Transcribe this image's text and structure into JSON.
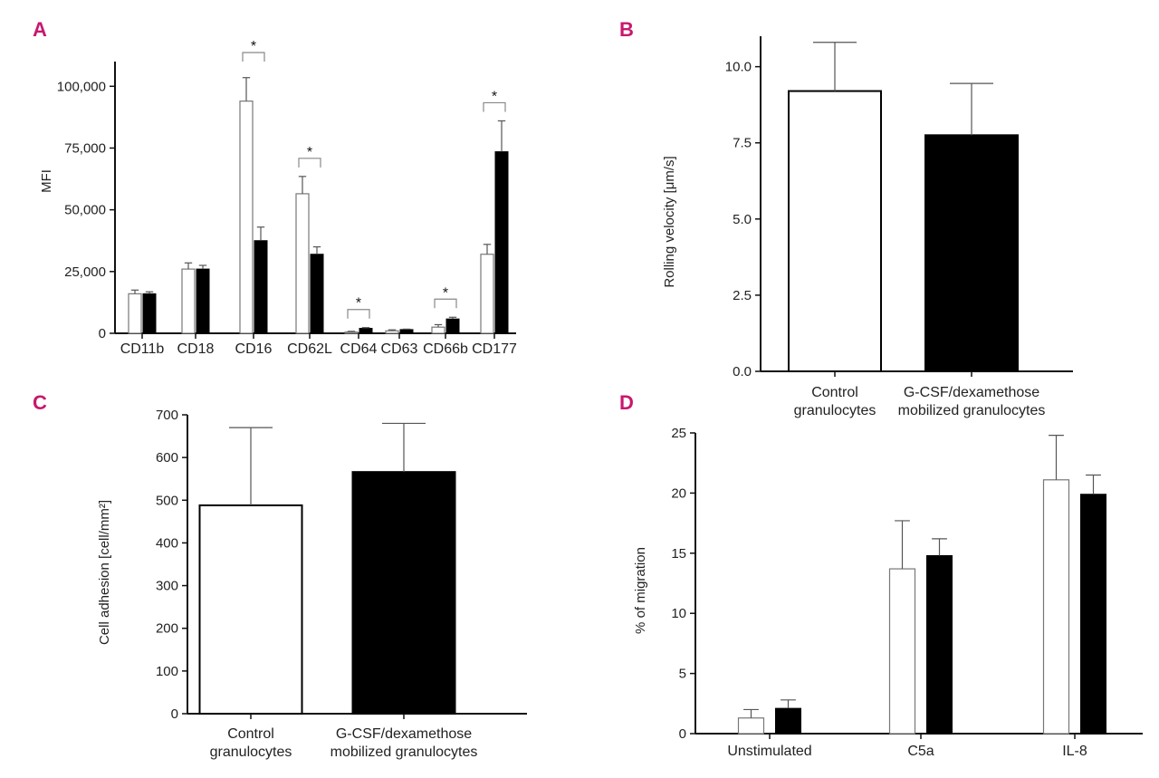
{
  "chart_data": [
    {
      "panel": "A",
      "type": "bar",
      "ylabel": "MFI",
      "ylim": [
        0,
        110000
      ],
      "yticks": [
        0,
        25000,
        50000,
        75000,
        100000
      ],
      "ytick_labels": [
        "0",
        "25,000",
        "50,000",
        "75,000",
        "100,000"
      ],
      "categories": [
        "CD11b",
        "CD18",
        "CD16",
        "CD62L",
        "CD64",
        "CD63",
        "CD66b",
        "CD177"
      ],
      "series": [
        {
          "name": "Control granulocytes",
          "color": "#ffffff",
          "values": [
            16000,
            26000,
            94000,
            56500,
            500,
            1000,
            2500,
            32000
          ],
          "errors": [
            1500,
            2500,
            9500,
            7000,
            300,
            400,
            1000,
            4000
          ]
        },
        {
          "name": "G-CSF/dexamethose mobilized granulocytes",
          "color": "#000000",
          "values": [
            16000,
            26000,
            37500,
            32000,
            2000,
            1500,
            5800,
            73500
          ],
          "errors": [
            800,
            1500,
            5500,
            3000,
            300,
            200,
            700,
            12500
          ]
        }
      ],
      "significance": [
        {
          "category": "CD16",
          "label": "*"
        },
        {
          "category": "CD62L",
          "label": "*"
        },
        {
          "category": "CD64",
          "label": "*"
        },
        {
          "category": "CD66b",
          "label": "*"
        },
        {
          "category": "CD177",
          "label": "*"
        }
      ]
    },
    {
      "panel": "B",
      "type": "bar",
      "ylabel": "Rolling velocity [μm/s]",
      "ylim": [
        0,
        11
      ],
      "yticks": [
        0,
        2.5,
        5,
        7.5,
        10
      ],
      "ytick_labels": [
        "0.0",
        "2.5",
        "5.0",
        "7.5",
        "10.0"
      ],
      "categories": [
        [
          "Control",
          "granulocytes"
        ],
        [
          "G-CSF/dexamethose",
          "mobilized granulocytes"
        ]
      ],
      "values": [
        9.2,
        7.75
      ],
      "errors": [
        1.6,
        1.7
      ],
      "colors": [
        "#ffffff",
        "#000000"
      ]
    },
    {
      "panel": "C",
      "type": "bar",
      "ylabel": "Cell adhesion [cell/mm²]",
      "ylim": [
        0,
        700
      ],
      "yticks": [
        0,
        100,
        200,
        300,
        400,
        500,
        600,
        700
      ],
      "ytick_labels": [
        "0",
        "100",
        "200",
        "300",
        "400",
        "500",
        "600",
        "700"
      ],
      "categories": [
        [
          "Control",
          "granulocytes"
        ],
        [
          "G-CSF/dexamethose",
          "mobilized granulocytes"
        ]
      ],
      "values": [
        488,
        566
      ],
      "errors": [
        182,
        114
      ],
      "colors": [
        "#ffffff",
        "#000000"
      ]
    },
    {
      "panel": "D",
      "type": "bar",
      "ylabel": "% of migration",
      "ylim": [
        0,
        25
      ],
      "yticks": [
        0,
        5,
        10,
        15,
        20,
        25
      ],
      "ytick_labels": [
        "0",
        "5",
        "10",
        "15",
        "20",
        "25"
      ],
      "categories": [
        "Unstimulated",
        "C5a",
        "IL-8"
      ],
      "series": [
        {
          "name": "Control granulocytes",
          "color": "#ffffff",
          "values": [
            1.3,
            13.7,
            21.1
          ],
          "errors": [
            0.7,
            4.0,
            3.7
          ]
        },
        {
          "name": "G-CSF/dexamethose mobilized granulocytes",
          "color": "#000000",
          "values": [
            2.1,
            14.8,
            19.9
          ],
          "errors": [
            0.7,
            1.4,
            1.6
          ]
        }
      ]
    }
  ]
}
